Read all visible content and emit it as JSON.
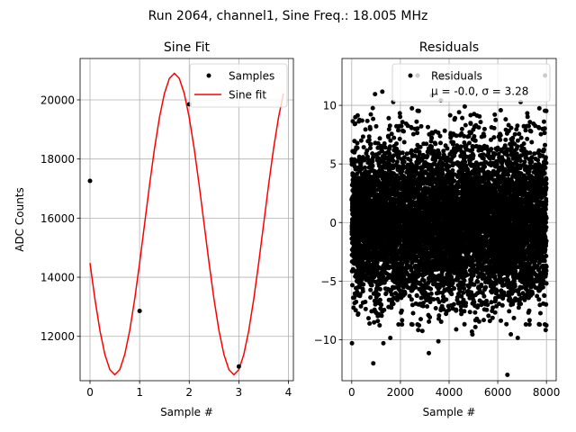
{
  "figure": {
    "suptitle": "Run 2064, channel1, Sine Freq.: 18.005 MHz"
  },
  "colors": {
    "sine_fit": "#ff0000",
    "samples": "#000000",
    "grid": "#b0b0b0"
  },
  "chart_data": [
    {
      "type": "line",
      "title": "Sine Fit",
      "xlabel": "Sample #",
      "ylabel": "ADC Counts",
      "xlim": [
        -0.2,
        4.1
      ],
      "ylim": [
        10500,
        21400
      ],
      "xticks": [
        0,
        1,
        2,
        3,
        4
      ],
      "yticks": [
        12000,
        14000,
        16000,
        18000,
        20000
      ],
      "grid": true,
      "legend_position": "top-right",
      "fit_params": {
        "offset": 15800,
        "amplitude": 5100,
        "period_samples": 2.4,
        "phase_shift_samples": 0.1
      },
      "series": [
        {
          "name": "Samples",
          "kind": "scatter",
          "x": [
            0,
            1,
            2,
            3
          ],
          "y": [
            17260,
            12860,
            19850,
            10980
          ]
        },
        {
          "name": "Sine fit",
          "kind": "line",
          "x_start": 0,
          "x_end": 3.9,
          "x_step": 0.1
        }
      ]
    },
    {
      "type": "scatter",
      "title": "Residuals",
      "xlabel": "Sample #",
      "ylabel": "",
      "xlim": [
        -400,
        8400
      ],
      "ylim": [
        -13.5,
        14.0
      ],
      "xticks": [
        0,
        2000,
        4000,
        6000,
        8000
      ],
      "yticks": [
        -10,
        -5,
        0,
        5,
        10
      ],
      "grid": true,
      "legend_position": "top-right",
      "series": [
        {
          "name": "Residuals",
          "label_line2": "μ = -0.0, σ = 3.28",
          "mean": 0.0,
          "std": 3.28,
          "n_points": 8000,
          "x_min": 0,
          "x_max": 8000
        }
      ]
    }
  ]
}
